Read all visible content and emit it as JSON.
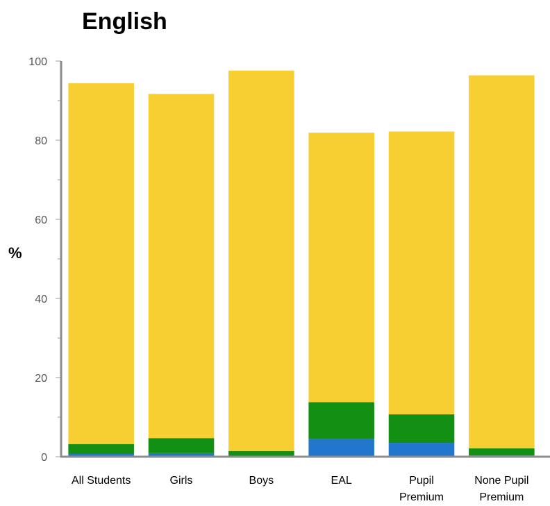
{
  "chart_data": {
    "type": "bar",
    "stacked": true,
    "title": "English",
    "xlabel": "",
    "ylabel": "%",
    "ylim": [
      0,
      100
    ],
    "yticks": [
      0,
      20,
      40,
      60,
      80,
      100
    ],
    "grid": false,
    "legend": "none",
    "categories": [
      [
        "All Students"
      ],
      [
        "Girls"
      ],
      [
        "Boys"
      ],
      [
        "EAL"
      ],
      [
        "Pupil",
        "Premium"
      ],
      [
        "None Pupil",
        "Premium"
      ]
    ],
    "series": [
      {
        "color": "#2277cc",
        "values": [
          0.7,
          0.9,
          0.2,
          4.5,
          3.5,
          0.3
        ]
      },
      {
        "color": "#138f13",
        "values": [
          2.5,
          3.8,
          1.2,
          9.3,
          7.2,
          1.8
        ]
      },
      {
        "color": "#f8cf32",
        "values": [
          91.2,
          87.0,
          96.2,
          68.1,
          71.5,
          94.3
        ]
      }
    ]
  }
}
